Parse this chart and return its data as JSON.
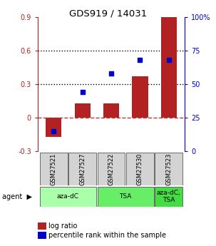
{
  "title": "GDS919 / 14031",
  "categories": [
    "GSM27521",
    "GSM27527",
    "GSM27522",
    "GSM27530",
    "GSM27523"
  ],
  "log_ratios": [
    -0.17,
    0.13,
    0.13,
    0.37,
    0.92
  ],
  "percentile_ranks": [
    15,
    44,
    58,
    68,
    68
  ],
  "ylim_left": [
    -0.3,
    0.9
  ],
  "ylim_right": [
    0,
    100
  ],
  "yticks_left": [
    -0.3,
    0.0,
    0.3,
    0.6,
    0.9
  ],
  "yticks_right": [
    0,
    25,
    50,
    75,
    100
  ],
  "ytick_labels_left": [
    "-0.3",
    "0",
    "0.3",
    "0.6",
    "0.9"
  ],
  "ytick_labels_right": [
    "0",
    "25",
    "50",
    "75",
    "100%"
  ],
  "hlines": [
    0.3,
    0.6
  ],
  "bar_color": "#b22222",
  "dot_color": "#0000cc",
  "zero_line_color": "#cc3333",
  "agent_groups": [
    {
      "label": "aza-dC",
      "span": [
        0,
        1
      ],
      "color": "#aaffaa"
    },
    {
      "label": "TSA",
      "span": [
        2,
        3
      ],
      "color": "#66ee66"
    },
    {
      "label": "aza-dC,\nTSA",
      "span": [
        4,
        4
      ],
      "color": "#44dd44"
    }
  ],
  "legend_items": [
    {
      "color": "#b22222",
      "label": "log ratio"
    },
    {
      "color": "#0000cc",
      "label": "percentile rank within the sample"
    }
  ],
  "bar_width": 0.55
}
